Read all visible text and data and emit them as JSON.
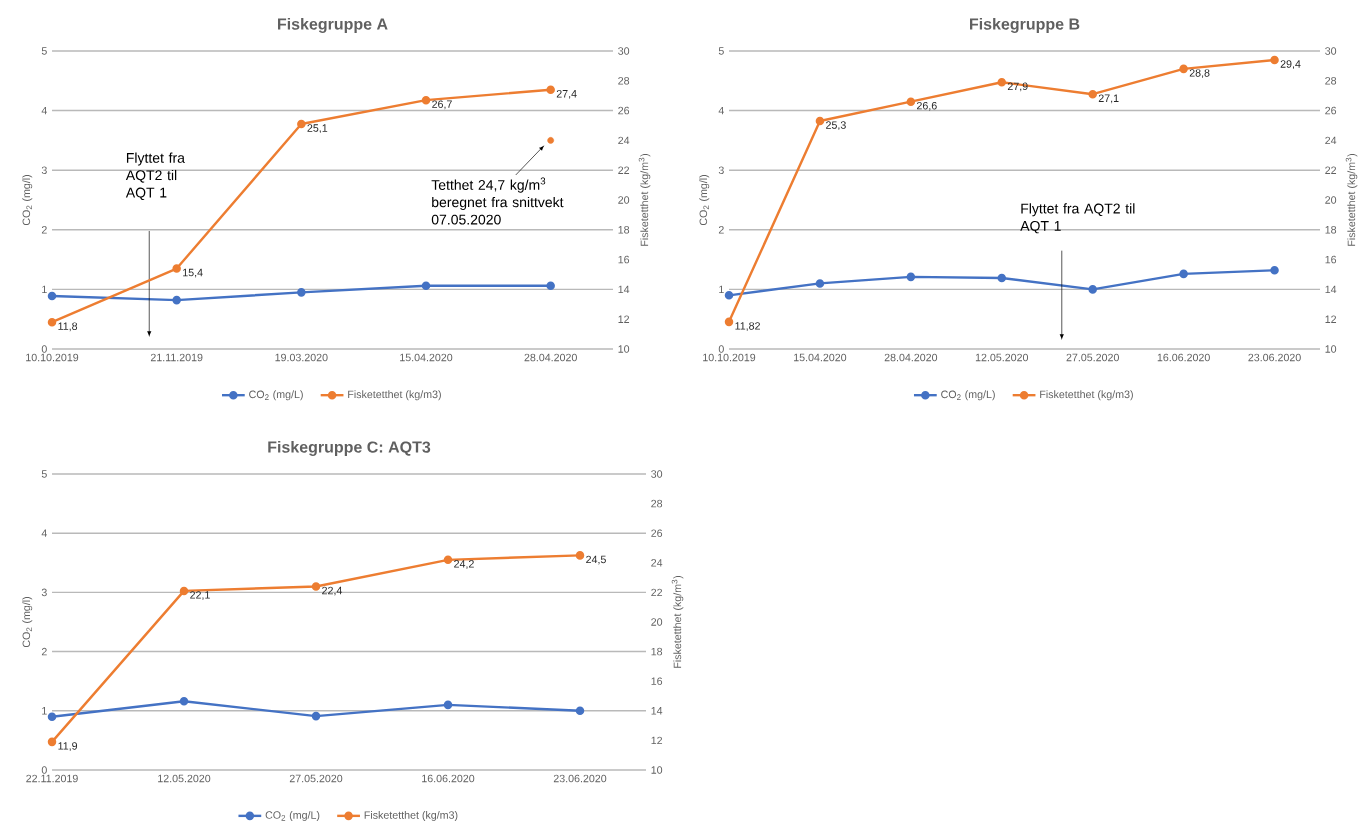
{
  "chart_data": [
    {
      "type": "line",
      "title": "Fiskegruppe A",
      "categories": [
        "10.10.2019",
        "21.11.2019",
        "19.03.2020",
        "15.04.2020",
        "28.04.2020"
      ],
      "ylabel": "CO$_{2}$ (mg/l)",
      "y2label": "Fisketetthet (kg/m$^{3}$)",
      "ylim": [
        0,
        5
      ],
      "yticks": [
        0,
        1,
        2,
        3,
        4,
        5
      ],
      "y2lim": [
        10,
        30
      ],
      "y2ticks": [
        10,
        12,
        14,
        16,
        18,
        20,
        22,
        24,
        26,
        28,
        30
      ],
      "grid": "y",
      "legend": "bottom",
      "marker": "circle",
      "line_style": "solid",
      "series": [
        {
          "name": "CO$_{2}$ (mg/L)",
          "color": "#4472c4",
          "values": [
            0.89,
            0.82,
            0.95,
            1.06,
            1.06
          ]
        },
        {
          "name": "Fisketetthet (kg/m3)",
          "color": "#ed7d31",
          "axis": "y2",
          "values": [
            11.8,
            15.4,
            25.1,
            26.7,
            27.4
          ],
          "value_labels": [
            "11,8",
            "15,4",
            "25,1",
            "26,7",
            "27,4"
          ]
        },
        {
          "type": "scatter",
          "color": "#ed7d31",
          "axis": "y2",
          "values": [
            null,
            null,
            null,
            null,
            24
          ]
        }
      ],
      "annotations": [
        "Flyttet fra AQT2 til AQT 1",
        "Tetthet 24,7 kg/m$^{3}$ beregnet fra snittvekt 07.05.2020"
      ]
    },
    {
      "type": "line",
      "title": "Fiskegruppe B",
      "categories": [
        "10.10.2019",
        "15.04.2020",
        "28.04.2020",
        "12.05.2020",
        "27.05.2020",
        "16.06.2020",
        "23.06.2020"
      ],
      "ylabel": "CO$_{2}$ (mg/l)",
      "y2label": "Fisketetthet (kg/m$^{3}$)",
      "ylim": [
        0,
        5
      ],
      "yticks": [
        0,
        1,
        2,
        3,
        4,
        5
      ],
      "y2lim": [
        10,
        30
      ],
      "y2ticks": [
        10,
        12,
        14,
        16,
        18,
        20,
        22,
        24,
        26,
        28,
        30
      ],
      "grid": "y",
      "legend": "bottom",
      "marker": "circle",
      "line_style": "solid",
      "series": [
        {
          "name": "CO$_{2}$ (mg/L)",
          "color": "#4472c4",
          "values": [
            0.9,
            1.1,
            1.21,
            1.19,
            1.0,
            1.26,
            1.32
          ]
        },
        {
          "name": "Fisketetthet (kg/m3)",
          "color": "#ed7d31",
          "axis": "y2",
          "values": [
            11.82,
            25.3,
            26.6,
            27.9,
            27.1,
            28.8,
            29.4
          ],
          "value_labels": [
            "11,82",
            "25,3",
            "26,6",
            "27,9",
            "27,1",
            "28,8",
            "29,4"
          ]
        }
      ],
      "annotations": [
        "Flyttet fra AQT2 til AQT 1"
      ]
    },
    {
      "type": "line",
      "title": "Fiskegruppe C: AQT3",
      "categories": [
        "22.11.2019",
        "12.05.2020",
        "27.05.2020",
        "16.06.2020",
        "23.06.2020"
      ],
      "ylabel": "CO$_{2}$ (mg/l)",
      "y2label": "Fisketetthet (kg/m$^{3}$)",
      "ylim": [
        0,
        5
      ],
      "yticks": [
        0,
        1,
        2,
        3,
        4,
        5
      ],
      "y2lim": [
        10,
        30
      ],
      "y2ticks": [
        10,
        12,
        14,
        16,
        18,
        20,
        22,
        24,
        26,
        28,
        30
      ],
      "grid": "y",
      "legend": "bottom",
      "marker": "circle",
      "line_style": "solid",
      "series": [
        {
          "name": "CO$_{2}$ (mg/L)",
          "color": "#4472c4",
          "values": [
            0.9,
            1.16,
            0.91,
            1.1,
            1.0
          ]
        },
        {
          "name": "Fisketetthet (kg/m3)",
          "color": "#ed7d31",
          "axis": "y2",
          "values": [
            11.9,
            22.1,
            22.4,
            24.2,
            24.5
          ],
          "value_labels": [
            "11,9",
            "22,1",
            "22,4",
            "24,2",
            "24,5"
          ]
        }
      ]
    }
  ]
}
